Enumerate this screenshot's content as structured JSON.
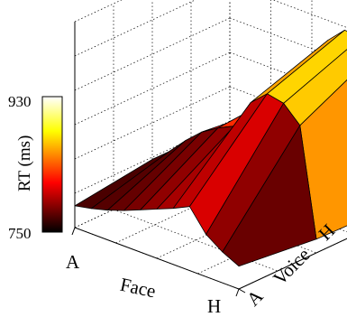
{
  "chart_data": {
    "type": "surface3d",
    "title": "",
    "xlabel": "Face",
    "ylabel": "Voice",
    "zlabel": "RT (ms)",
    "x_tick_labels": [
      "A",
      "H"
    ],
    "y_tick_labels": [
      "A",
      "H"
    ],
    "colorbar": {
      "tick_labels": [
        "930",
        "750"
      ],
      "range": [
        750,
        930
      ],
      "colormap": "hot"
    },
    "x_levels": 11,
    "y_levels": 3,
    "z_rows": [
      [
        769,
        772,
        776,
        781,
        787,
        793,
        799,
        806,
        787,
        777,
        770
      ],
      [
        778,
        790,
        805,
        818,
        827,
        834,
        860,
        873,
        870,
        856,
        762
      ],
      [
        772,
        781,
        795,
        810,
        832,
        860,
        883,
        897,
        896,
        890,
        760
      ]
    ],
    "grid": true
  }
}
